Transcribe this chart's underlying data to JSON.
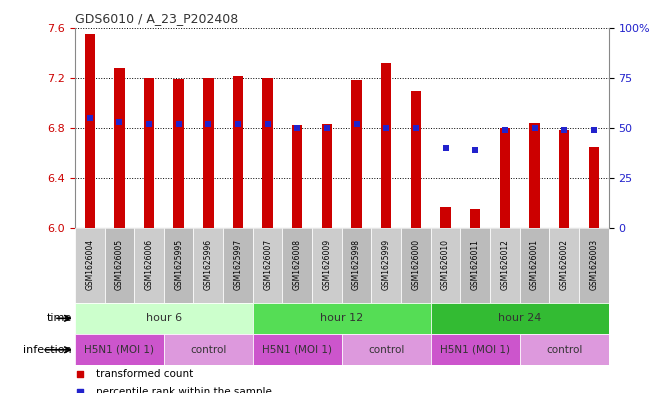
{
  "title": "GDS6010 / A_23_P202408",
  "samples": [
    "GSM1626004",
    "GSM1626005",
    "GSM1626006",
    "GSM1625995",
    "GSM1625996",
    "GSM1625997",
    "GSM1626007",
    "GSM1626008",
    "GSM1626009",
    "GSM1625998",
    "GSM1625999",
    "GSM1626000",
    "GSM1626010",
    "GSM1626011",
    "GSM1626012",
    "GSM1626001",
    "GSM1626002",
    "GSM1626003"
  ],
  "bar_values": [
    7.55,
    7.28,
    7.2,
    7.19,
    7.2,
    7.21,
    7.2,
    6.82,
    6.83,
    7.18,
    7.32,
    7.09,
    6.17,
    6.15,
    6.8,
    6.84,
    6.78,
    6.65
  ],
  "blue_dot_percentiles": [
    55,
    53,
    52,
    52,
    52,
    52,
    52,
    50,
    50,
    52,
    50,
    50,
    40,
    39,
    49,
    50,
    49,
    49
  ],
  "ylim": [
    6.0,
    7.6
  ],
  "yticks": [
    6.0,
    6.4,
    6.8,
    7.2,
    7.6
  ],
  "right_yticks": [
    0,
    25,
    50,
    75,
    100
  ],
  "bar_color": "#cc0000",
  "dot_color": "#2222cc",
  "bar_bottom": 6.0,
  "time_groups": [
    {
      "label": "hour 6",
      "start": 0,
      "end": 6,
      "color": "#ccffcc"
    },
    {
      "label": "hour 12",
      "start": 6,
      "end": 12,
      "color": "#55dd55"
    },
    {
      "label": "hour 24",
      "start": 12,
      "end": 18,
      "color": "#33bb33"
    }
  ],
  "infection_groups": [
    {
      "label": "H5N1 (MOI 1)",
      "start": 0,
      "end": 3,
      "color": "#cc55cc"
    },
    {
      "label": "control",
      "start": 3,
      "end": 6,
      "color": "#dd99dd"
    },
    {
      "label": "H5N1 (MOI 1)",
      "start": 6,
      "end": 9,
      "color": "#cc55cc"
    },
    {
      "label": "control",
      "start": 9,
      "end": 12,
      "color": "#dd99dd"
    },
    {
      "label": "H5N1 (MOI 1)",
      "start": 12,
      "end": 15,
      "color": "#cc55cc"
    },
    {
      "label": "control",
      "start": 15,
      "end": 18,
      "color": "#dd99dd"
    }
  ],
  "time_label": "time",
  "infection_label": "infection",
  "legend_bar_label": "transformed count",
  "legend_dot_label": "percentile rank within the sample",
  "sample_box_color": "#cccccc",
  "sample_box_alt_color": "#bbbbbb"
}
